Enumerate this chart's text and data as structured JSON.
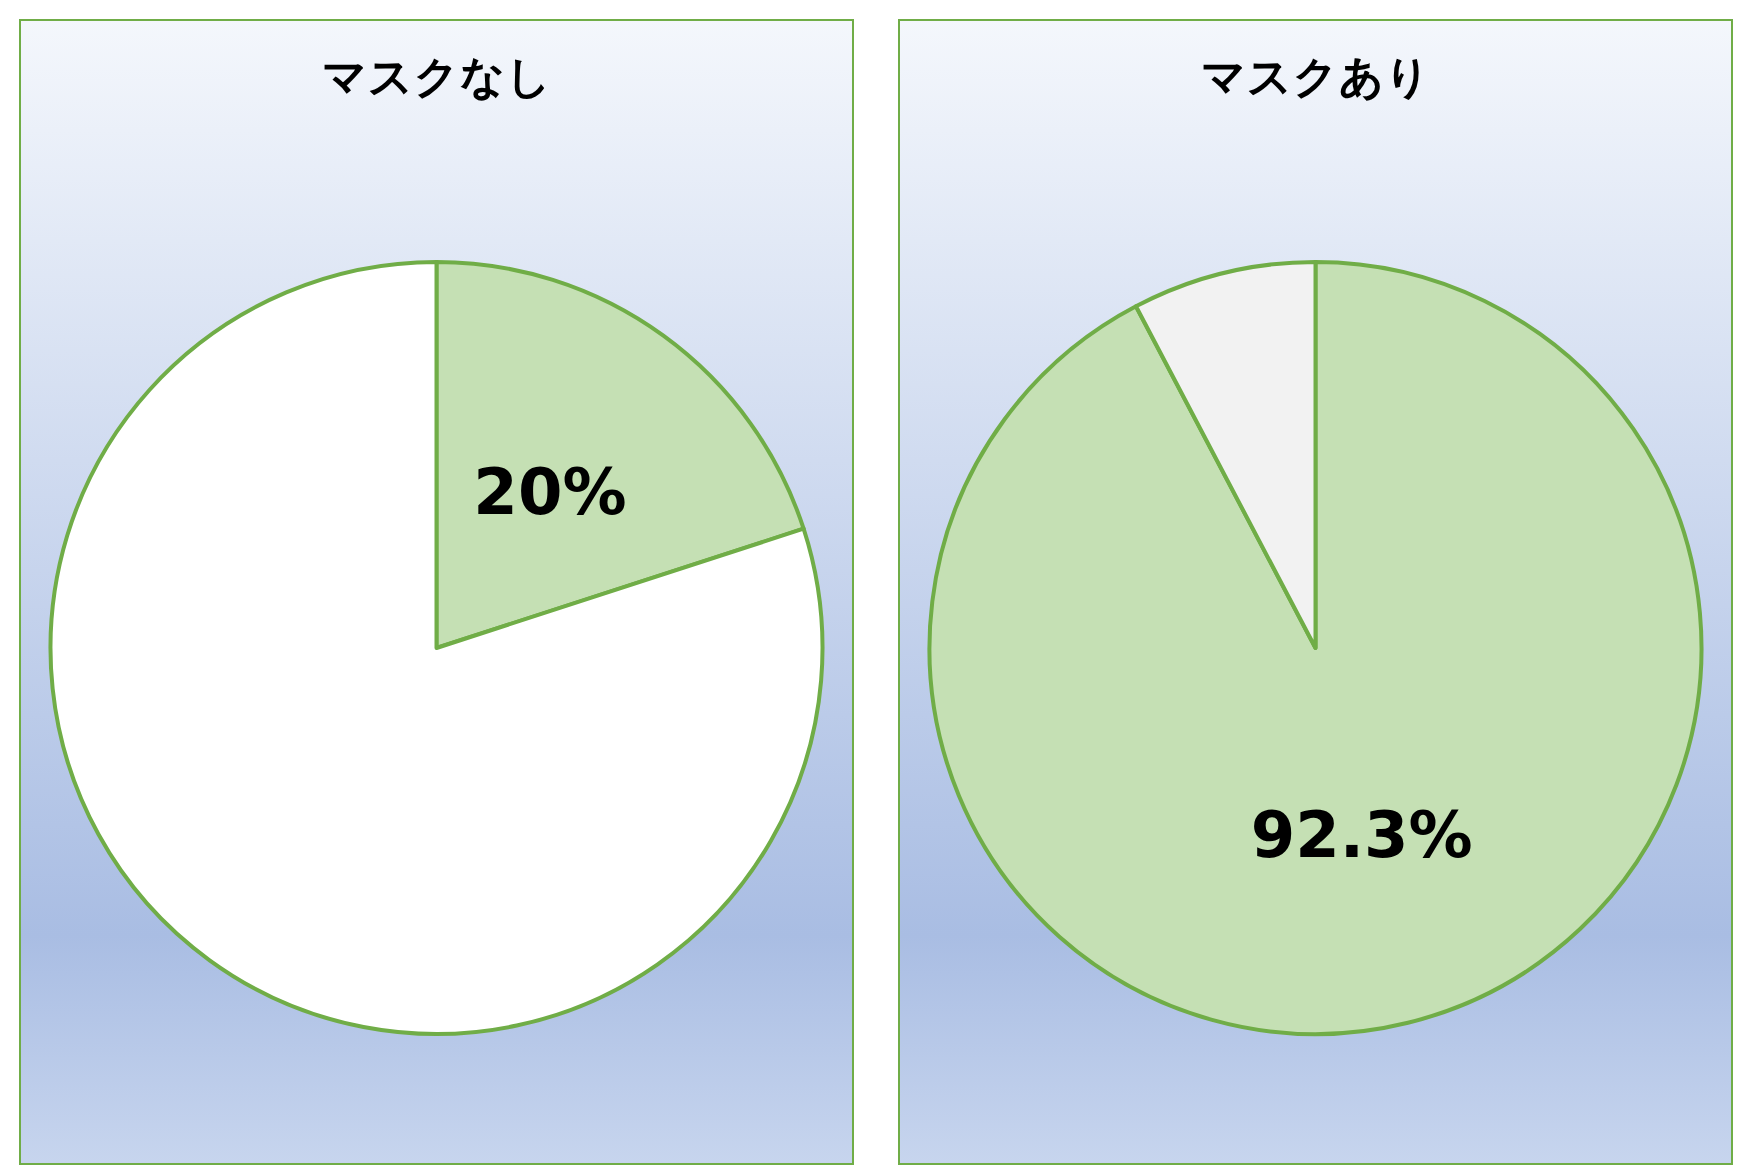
{
  "chart_data": [
    {
      "type": "pie",
      "title": "マスクなし",
      "categories": [
        null,
        null
      ],
      "values": [
        20,
        80
      ],
      "colors": [
        "#c5e0b4",
        "#ffffff"
      ],
      "value_labels": [
        "20%",
        null
      ]
    },
    {
      "type": "pie",
      "title": "マスクあり",
      "categories": [
        null,
        null
      ],
      "values": [
        92.3,
        7.7
      ],
      "colors": [
        "#c5e0b4",
        "#f2f2f2"
      ],
      "value_labels": [
        "92.3%",
        null
      ]
    }
  ]
}
